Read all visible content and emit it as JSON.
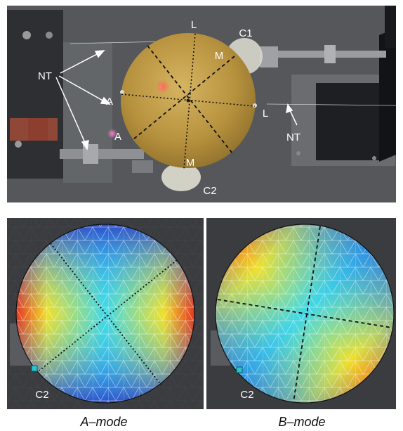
{
  "photo": {
    "labels": {
      "L_top": "L",
      "L_right": "L",
      "M_top": "M",
      "M_bottom": "M",
      "A_left": "A",
      "A_lower": "A",
      "C1": "C1",
      "C2": "C2",
      "NT_left": "NT",
      "NT_right": "NT"
    },
    "colors": {
      "plate": "#b8933f",
      "background": "#55575a"
    }
  },
  "panels": [
    {
      "caption": "A–mode",
      "marker_label": "C2"
    },
    {
      "caption": "B–mode",
      "marker_label": "C2"
    }
  ],
  "colors": {
    "red": "#e8281e",
    "yellow": "#f2e02a",
    "cyan": "#40d8e8",
    "blue": "#2a3fc8",
    "marker": "#27c6d2"
  }
}
